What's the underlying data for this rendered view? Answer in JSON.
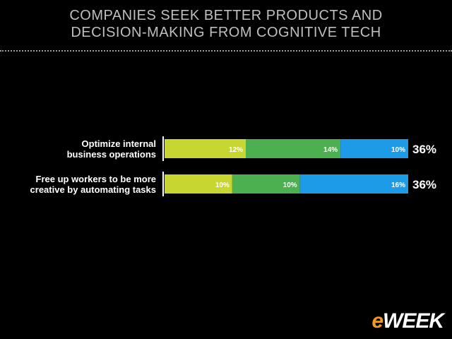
{
  "slide": {
    "title_line1": "COMPANIES SEEK BETTER PRODUCTS AND",
    "title_line2": "DECISION-MAKING FROM COGNITIVE TECH",
    "logo_e": "e",
    "logo_text": "WEEK"
  },
  "colors": {
    "segment1": "#c8d632",
    "segment2": "#4caf50",
    "segment3": "#1e9be6",
    "label_text": "#ffffff",
    "background": "#000000"
  },
  "chart_data": {
    "type": "bar",
    "orientation": "horizontal",
    "stacked": true,
    "categories": [
      [
        "Optimize internal",
        "business operations"
      ],
      [
        "Free up workers to be more",
        "creative by automating tasks"
      ]
    ],
    "series": [
      {
        "values": [
          12,
          10
        ]
      },
      {
        "values": [
          14,
          10
        ]
      },
      {
        "values": [
          10,
          16
        ]
      }
    ],
    "totals": [
      "36%",
      "36%"
    ],
    "value_suffix": "%",
    "xlim": [
      0,
      36
    ],
    "legend": "none",
    "grid": false
  }
}
